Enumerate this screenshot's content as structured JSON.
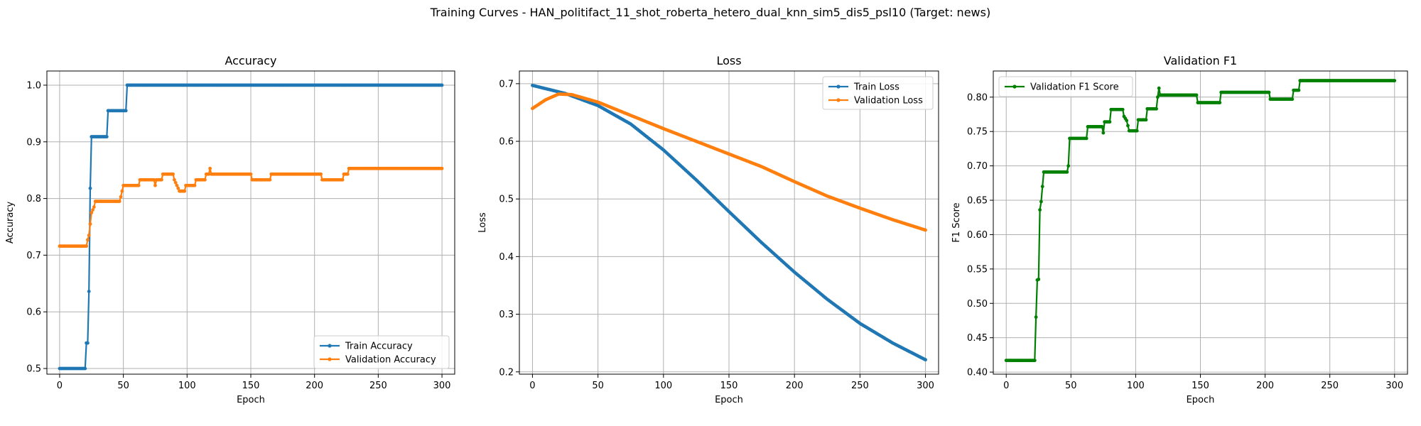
{
  "figure": {
    "title": "Training Curves - HAN_politifact_11_shot_roberta_hetero_dual_knn_sim5_dis5_psl10 (Target: news)"
  },
  "colors": {
    "blue": "#1f77b4",
    "orange": "#ff7f0e",
    "green": "#008000",
    "grid": "#b0b0b0"
  },
  "chart_data": [
    {
      "type": "line",
      "title": "Accuracy",
      "xlabel": "Epoch",
      "ylabel": "Accuracy",
      "xlim": [
        -10,
        310
      ],
      "ylim": [
        0.49,
        1.025
      ],
      "xticks": [
        0,
        50,
        100,
        150,
        200,
        250,
        300
      ],
      "yticks": [
        0.5,
        0.6,
        0.7,
        0.8,
        0.9,
        1.0
      ],
      "ytick_labels": [
        "0.5",
        "0.6",
        "0.7",
        "0.8",
        "0.9",
        "1.0"
      ],
      "grid": true,
      "legend": "lower-right",
      "series": [
        {
          "name": "Train Accuracy",
          "color": "#1f77b4",
          "points": [
            [
              0,
              0.5
            ],
            [
              20,
              0.5
            ],
            [
              21,
              0.545
            ],
            [
              22,
              0.545
            ],
            [
              23,
              0.636
            ],
            [
              24,
              0.818
            ],
            [
              25,
              0.909
            ],
            [
              37,
              0.909
            ],
            [
              38,
              0.955
            ],
            [
              52,
              0.955
            ],
            [
              53,
              1.0
            ],
            [
              300,
              1.0
            ]
          ]
        },
        {
          "name": "Validation Accuracy",
          "color": "#ff7f0e",
          "points": [
            [
              0,
              0.716
            ],
            [
              21,
              0.716
            ],
            [
              22,
              0.727
            ],
            [
              23,
              0.735
            ],
            [
              25,
              0.775
            ],
            [
              27,
              0.785
            ],
            [
              28,
              0.795
            ],
            [
              47,
              0.795
            ],
            [
              48,
              0.803
            ],
            [
              50,
              0.823
            ],
            [
              62,
              0.823
            ],
            [
              63,
              0.833
            ],
            [
              74,
              0.833
            ],
            [
              75,
              0.823
            ],
            [
              76,
              0.833
            ],
            [
              80,
              0.833
            ],
            [
              81,
              0.843
            ],
            [
              89,
              0.843
            ],
            [
              90,
              0.833
            ],
            [
              92,
              0.823
            ],
            [
              94,
              0.813
            ],
            [
              98,
              0.813
            ],
            [
              99,
              0.823
            ],
            [
              106,
              0.823
            ],
            [
              107,
              0.833
            ],
            [
              114,
              0.833
            ],
            [
              115,
              0.843
            ],
            [
              117,
              0.843
            ],
            [
              118,
              0.853
            ],
            [
              119,
              0.843
            ],
            [
              150,
              0.843
            ],
            [
              151,
              0.833
            ],
            [
              165,
              0.833
            ],
            [
              166,
              0.843
            ],
            [
              205,
              0.843
            ],
            [
              206,
              0.833
            ],
            [
              222,
              0.833
            ],
            [
              223,
              0.843
            ],
            [
              226,
              0.843
            ],
            [
              227,
              0.853
            ],
            [
              300,
              0.853
            ]
          ]
        }
      ]
    },
    {
      "type": "line",
      "title": "Loss",
      "xlabel": "Epoch",
      "ylabel": "Loss",
      "xlim": [
        -10,
        310
      ],
      "ylim": [
        0.196,
        0.722
      ],
      "xticks": [
        0,
        50,
        100,
        150,
        200,
        250,
        300
      ],
      "yticks": [
        0.2,
        0.3,
        0.4,
        0.5,
        0.6,
        0.7
      ],
      "ytick_labels": [
        "0.2",
        "0.3",
        "0.4",
        "0.5",
        "0.6",
        "0.7"
      ],
      "grid": true,
      "legend": "upper-right",
      "series": [
        {
          "name": "Train Loss",
          "color": "#1f77b4",
          "points": [
            [
              0,
              0.697
            ],
            [
              25,
              0.683
            ],
            [
              50,
              0.662
            ],
            [
              75,
              0.63
            ],
            [
              100,
              0.585
            ],
            [
              125,
              0.533
            ],
            [
              150,
              0.478
            ],
            [
              175,
              0.424
            ],
            [
              200,
              0.373
            ],
            [
              225,
              0.326
            ],
            [
              250,
              0.284
            ],
            [
              275,
              0.25
            ],
            [
              300,
              0.221
            ]
          ]
        },
        {
          "name": "Validation Loss",
          "color": "#ff7f0e",
          "points": [
            [
              0,
              0.657
            ],
            [
              10,
              0.672
            ],
            [
              20,
              0.682
            ],
            [
              30,
              0.681
            ],
            [
              50,
              0.668
            ],
            [
              75,
              0.645
            ],
            [
              100,
              0.622
            ],
            [
              125,
              0.6
            ],
            [
              150,
              0.578
            ],
            [
              175,
              0.556
            ],
            [
              200,
              0.53
            ],
            [
              225,
              0.505
            ],
            [
              250,
              0.484
            ],
            [
              275,
              0.464
            ],
            [
              300,
              0.446
            ]
          ]
        }
      ]
    },
    {
      "type": "line",
      "title": "Validation F1",
      "xlabel": "Epoch",
      "ylabel": "F1 Score",
      "xlim": [
        -10,
        310
      ],
      "ylim": [
        0.397,
        0.838
      ],
      "xticks": [
        0,
        50,
        100,
        150,
        200,
        250,
        300
      ],
      "yticks": [
        0.4,
        0.45,
        0.5,
        0.55,
        0.6,
        0.65,
        0.7,
        0.75,
        0.8
      ],
      "ytick_labels": [
        "0.40",
        "0.45",
        "0.50",
        "0.55",
        "0.60",
        "0.65",
        "0.70",
        "0.75",
        "0.80"
      ],
      "grid": true,
      "legend": "upper-left",
      "series": [
        {
          "name": "Validation F1 Score",
          "color": "#008000",
          "points": [
            [
              0,
              0.417
            ],
            [
              22,
              0.417
            ],
            [
              23,
              0.48
            ],
            [
              24,
              0.534
            ],
            [
              25,
              0.535
            ],
            [
              26,
              0.636
            ],
            [
              27,
              0.648
            ],
            [
              28,
              0.67
            ],
            [
              29,
              0.691
            ],
            [
              47,
              0.691
            ],
            [
              48,
              0.7
            ],
            [
              49,
              0.74
            ],
            [
              62,
              0.74
            ],
            [
              63,
              0.757
            ],
            [
              74,
              0.757
            ],
            [
              75,
              0.748
            ],
            [
              76,
              0.764
            ],
            [
              80,
              0.764
            ],
            [
              81,
              0.782
            ],
            [
              90,
              0.782
            ],
            [
              91,
              0.772
            ],
            [
              93,
              0.766
            ],
            [
              95,
              0.751
            ],
            [
              101,
              0.751
            ],
            [
              102,
              0.767
            ],
            [
              108,
              0.767
            ],
            [
              109,
              0.783
            ],
            [
              116,
              0.783
            ],
            [
              117,
              0.8
            ],
            [
              118,
              0.813
            ],
            [
              119,
              0.803
            ],
            [
              147,
              0.803
            ],
            [
              148,
              0.792
            ],
            [
              165,
              0.792
            ],
            [
              166,
              0.807
            ],
            [
              203,
              0.807
            ],
            [
              204,
              0.797
            ],
            [
              221,
              0.797
            ],
            [
              222,
              0.81
            ],
            [
              226,
              0.81
            ],
            [
              227,
              0.824
            ],
            [
              300,
              0.824
            ]
          ]
        }
      ]
    }
  ]
}
